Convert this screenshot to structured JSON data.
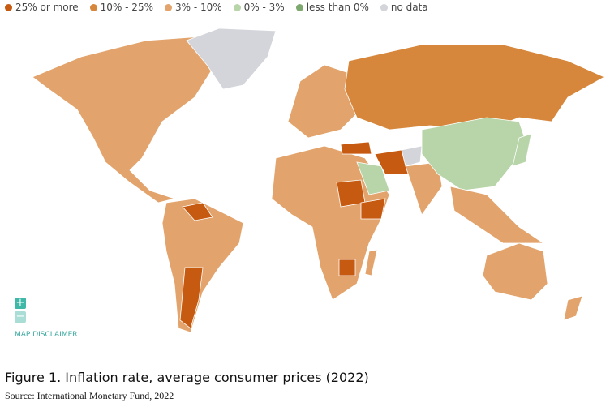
{
  "legend": {
    "items": [
      {
        "label": "25% or more",
        "color": "#c65a11"
      },
      {
        "label": "10% - 25%",
        "color": "#d6873b"
      },
      {
        "label": "3% - 10%",
        "color": "#e2a46c"
      },
      {
        "label": "0% - 3%",
        "color": "#b8d5aa"
      },
      {
        "label": "less than 0%",
        "color": "#7ea96e"
      },
      {
        "label": "no data",
        "color": "#d4d5da"
      }
    ]
  },
  "map": {
    "zoom_in": "+",
    "zoom_out": "−",
    "disclaimer": "MAP DISCLAIMER"
  },
  "caption": "Figure 1. Inflation rate, average consumer prices (2022)",
  "source": "Source: International Monetary Fund, 2022"
}
